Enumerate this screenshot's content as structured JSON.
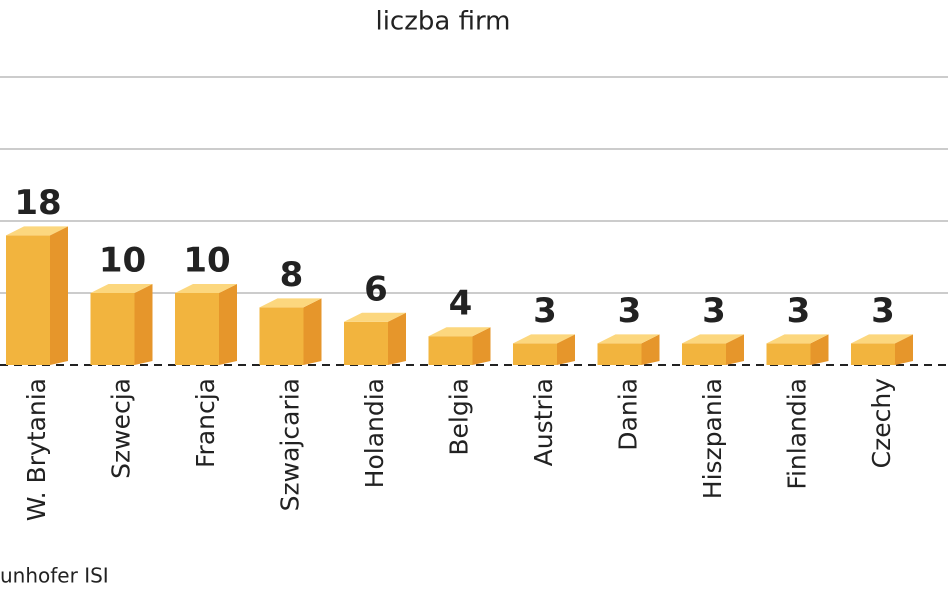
{
  "chart_data": {
    "type": "bar",
    "title": "liczba firm",
    "categories": [
      "W. Brytania",
      "Szwecja",
      "Francja",
      "Szwajcaria",
      "Holandia",
      "Belgia",
      "Austria",
      "Dania",
      "Hiszpania",
      "Finlandia",
      "Czechy"
    ],
    "values": [
      18,
      10,
      10,
      8,
      6,
      4,
      3,
      3,
      3,
      3,
      3
    ],
    "color": "#f2b43e",
    "ylim": [
      0,
      40
    ],
    "yticks": [
      0,
      10,
      20,
      30,
      40
    ],
    "grid": true,
    "source": "unhofer ISI"
  }
}
